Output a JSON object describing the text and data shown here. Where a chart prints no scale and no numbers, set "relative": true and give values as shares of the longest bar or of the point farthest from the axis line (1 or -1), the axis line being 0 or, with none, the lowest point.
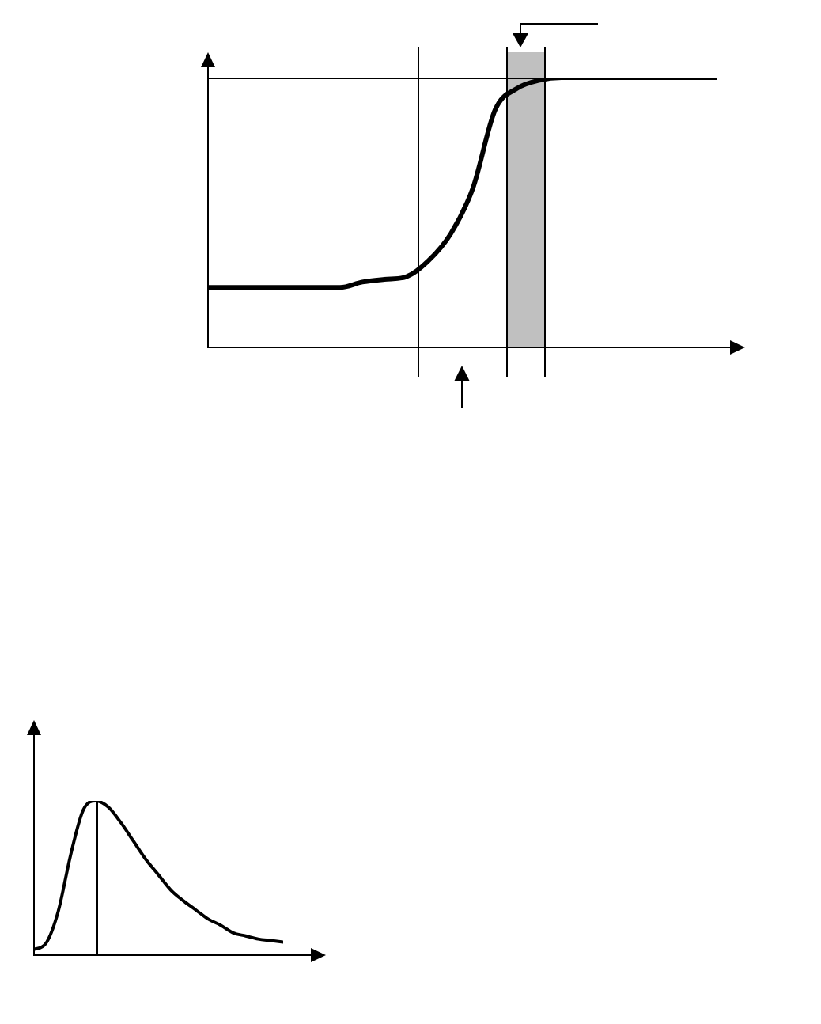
{
  "chart_data": [
    {
      "type": "line",
      "relative": true,
      "categories": [
        null,
        null,
        null,
        null,
        null,
        null,
        null,
        null,
        null,
        null,
        null,
        null,
        null,
        null,
        null,
        null,
        null,
        null,
        null,
        null,
        null,
        null,
        null,
        null
      ],
      "series": [
        {
          "color": "#000000",
          "values": [
            0.22,
            0.22,
            0.22,
            0.22,
            0.22,
            0.22,
            0.22,
            0.24,
            0.25,
            0.26,
            0.32,
            0.42,
            0.59,
            0.88,
            0.96,
            0.99,
            1,
            1,
            1,
            1,
            1,
            1,
            1,
            1
          ]
        }
      ],
      "legend": false,
      "marker": "none",
      "line_style": "solid"
    },
    {
      "type": "line",
      "relative": true,
      "categories": [
        null,
        null,
        null,
        null,
        null,
        null,
        null,
        null,
        null,
        null,
        null,
        null,
        null,
        null,
        null,
        null,
        null,
        null,
        null,
        null,
        null
      ],
      "series": [
        {
          "color": "#000000",
          "values": [
            0.03,
            0.07,
            0.28,
            0.65,
            0.94,
            1,
            0.96,
            0.86,
            0.74,
            0.62,
            0.52,
            0.42,
            0.35,
            0.29,
            0.23,
            0.19,
            0.14,
            0.12,
            0.1,
            0.09,
            0.08
          ]
        }
      ],
      "legend": false,
      "marker": "none",
      "line_style": "solid"
    }
  ]
}
